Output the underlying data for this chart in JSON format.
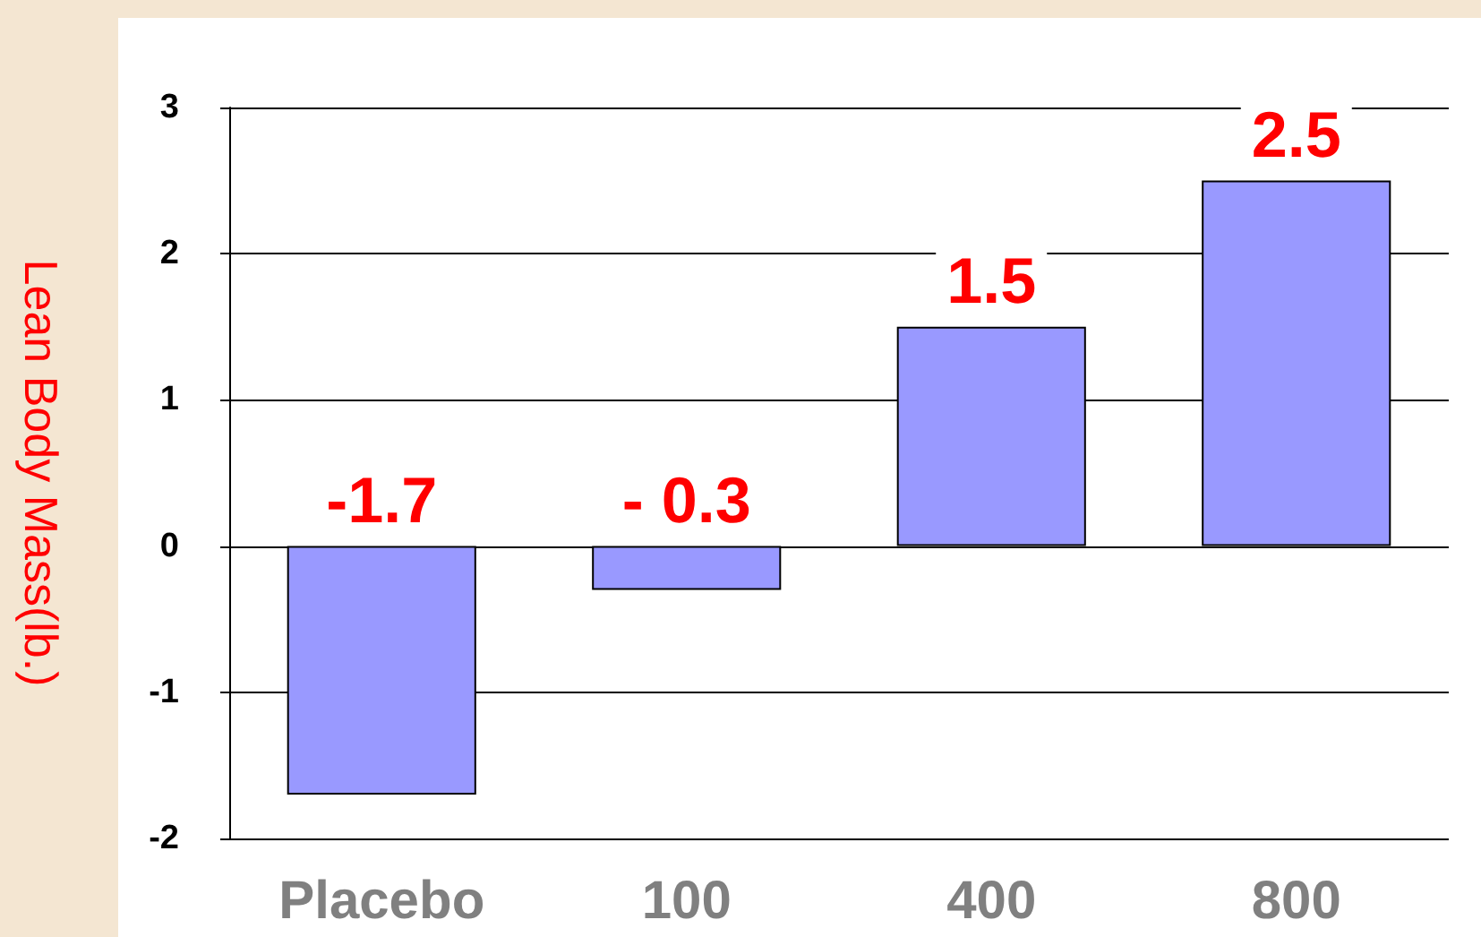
{
  "chart_data": {
    "type": "bar",
    "ylabel": "Lean Body Mass(lb.)",
    "categories": [
      "Placebo",
      "100",
      "400",
      "800"
    ],
    "values": [
      -1.7,
      -0.3,
      1.5,
      2.5
    ],
    "value_labels": [
      "-1.7",
      "- 0.3",
      "1.5",
      "2.5"
    ],
    "color": "#9999ff",
    "ylim": [
      -2,
      3
    ],
    "yticks": [
      -2,
      -1,
      0,
      1,
      2,
      3
    ],
    "grid": "y"
  }
}
